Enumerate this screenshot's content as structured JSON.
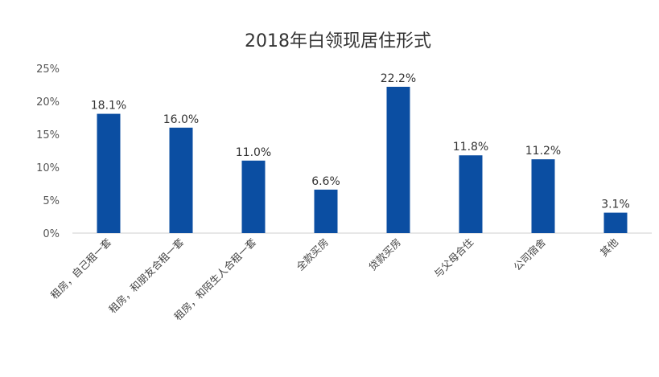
{
  "chart_data": {
    "type": "bar",
    "title": "2018年白领现居住形式",
    "categories": [
      "租房，自己租一套",
      "租房，和朋友合租一套",
      "租房，和陌生人合租一套",
      "全款买房",
      "贷款买房",
      "与父母合住",
      "公司宿舍",
      "其他"
    ],
    "values": [
      18.1,
      16.0,
      11.0,
      6.6,
      22.2,
      11.8,
      11.2,
      3.1
    ],
    "value_labels": [
      "18.1%",
      "16.0%",
      "11.0%",
      "6.6%",
      "22.2%",
      "11.8%",
      "11.2%",
      "3.1%"
    ],
    "yticks": [
      "0%",
      "5%",
      "10%",
      "15%",
      "20%",
      "25%"
    ],
    "ytick_values": [
      0,
      5,
      10,
      15,
      20,
      25
    ],
    "ylim": [
      0,
      25
    ],
    "xlabel": "",
    "ylabel": "",
    "grid": false,
    "legend": "none",
    "bar_color": "#0b4ea2",
    "axis_color": "#cfcfcf"
  }
}
